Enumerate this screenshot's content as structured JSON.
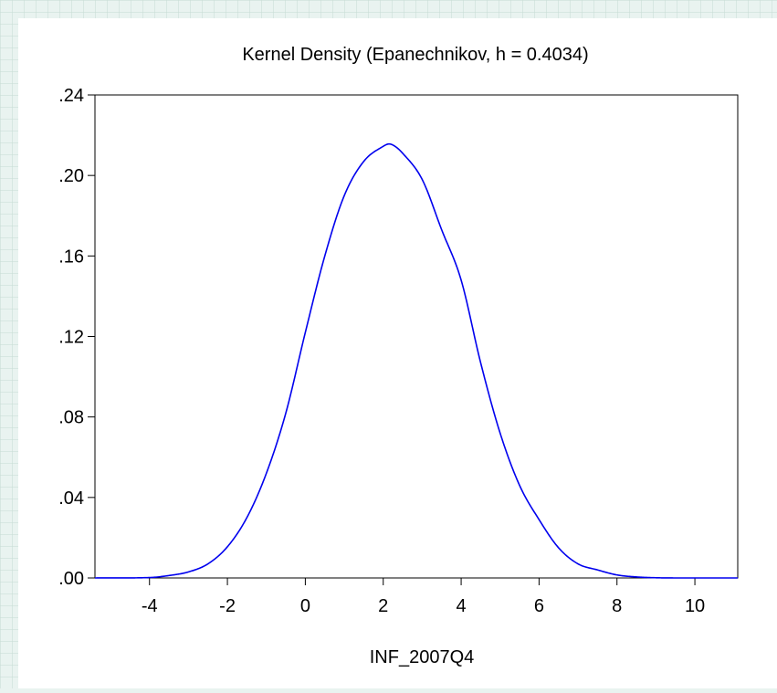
{
  "chart_data": {
    "type": "line",
    "title": "Kernel Density (Epanechnikov, h =  0.4034)",
    "xlabel": "INF_2007Q4",
    "ylabel": "",
    "xlim": [
      -5.4,
      11.1
    ],
    "ylim": [
      0,
      0.24
    ],
    "xticks": [
      -4,
      -2,
      0,
      2,
      4,
      6,
      8,
      10
    ],
    "xtick_labels": [
      "-4",
      "-2",
      "0",
      "2",
      "4",
      "6",
      "8",
      "10"
    ],
    "yticks": [
      0,
      0.04,
      0.08,
      0.12,
      0.16,
      0.2,
      0.24
    ],
    "ytick_labels": [
      ".00",
      ".04",
      ".08",
      ".12",
      ".16",
      ".20",
      ".24"
    ],
    "grid": false,
    "legend": "none",
    "series": [
      {
        "color": "#0000ee",
        "x": [
          -5.4,
          -4.0,
          -3.5,
          -3.0,
          -2.5,
          -2.0,
          -1.5,
          -1.0,
          -0.5,
          0.0,
          0.5,
          1.0,
          1.5,
          2.0,
          2.2,
          2.5,
          3.0,
          3.5,
          4.0,
          4.5,
          5.0,
          5.5,
          6.0,
          6.5,
          7.0,
          7.5,
          8.0,
          8.5,
          9.0,
          9.5,
          10.0,
          11.1
        ],
        "y": [
          0.0,
          0.0002,
          0.0012,
          0.003,
          0.007,
          0.0155,
          0.03,
          0.052,
          0.082,
          0.122,
          0.16,
          0.19,
          0.207,
          0.2145,
          0.2155,
          0.211,
          0.198,
          0.173,
          0.148,
          0.107,
          0.072,
          0.046,
          0.029,
          0.015,
          0.007,
          0.004,
          0.0015,
          0.0005,
          0.0001,
          0.0,
          0.0,
          0.0
        ]
      }
    ]
  }
}
